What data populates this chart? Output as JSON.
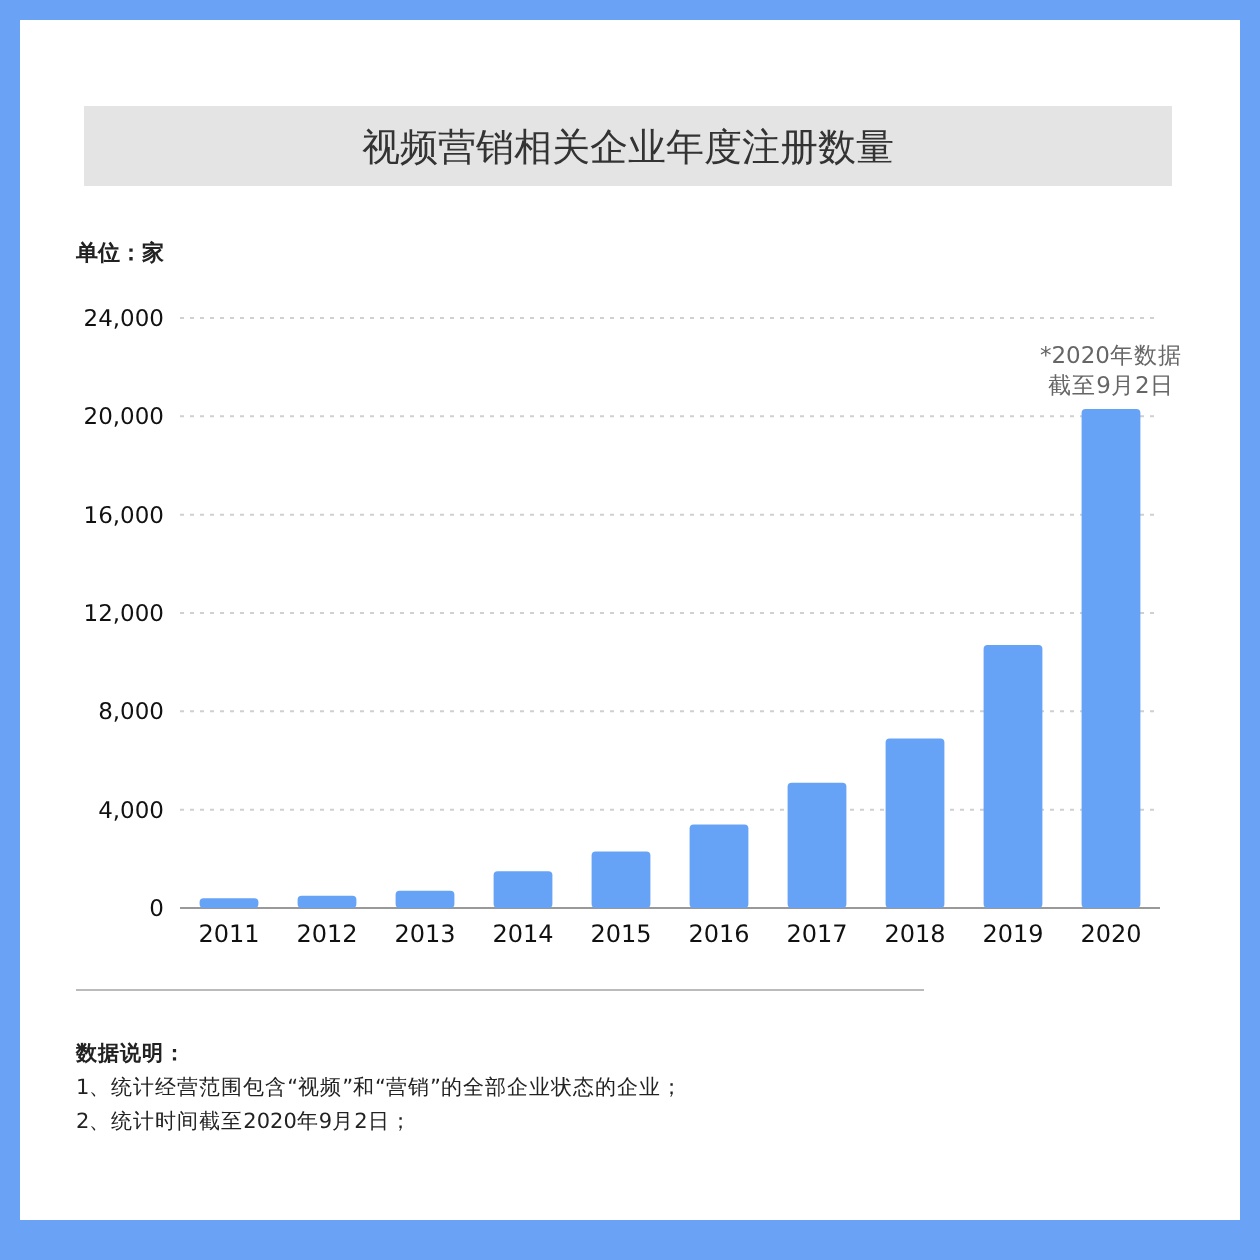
{
  "chart_data": {
    "type": "bar",
    "title": "视频营销相关企业年度注册数量",
    "ylabel": "单位：家",
    "categories": [
      "2011",
      "2012",
      "2013",
      "2014",
      "2015",
      "2016",
      "2017",
      "2018",
      "2019",
      "2020"
    ],
    "values": [
      400,
      500,
      700,
      1500,
      2300,
      3400,
      5100,
      6900,
      10700,
      20300
    ],
    "color": "#66a3f7",
    "ylim": [
      0,
      24000
    ],
    "yticks": [
      {
        "value": 0,
        "label": "0"
      },
      {
        "value": 4000,
        "label": "4,000"
      },
      {
        "value": 8000,
        "label": "8,000"
      },
      {
        "value": 12000,
        "label": "12,000"
      },
      {
        "value": 16000,
        "label": "16,000"
      },
      {
        "value": 20000,
        "label": "20,000"
      },
      {
        "value": 24000,
        "label": "24,000"
      }
    ],
    "grid": "y",
    "annotations": [
      {
        "text": "*2020年数据截至9月2日",
        "x": "2020",
        "y": 20300
      },
      "数据说明：",
      "1、统计经营范围包含“视频”和“营销”的全部企业状态的企业；",
      "2、统计时间截至2020年9月2日；"
    ]
  }
}
